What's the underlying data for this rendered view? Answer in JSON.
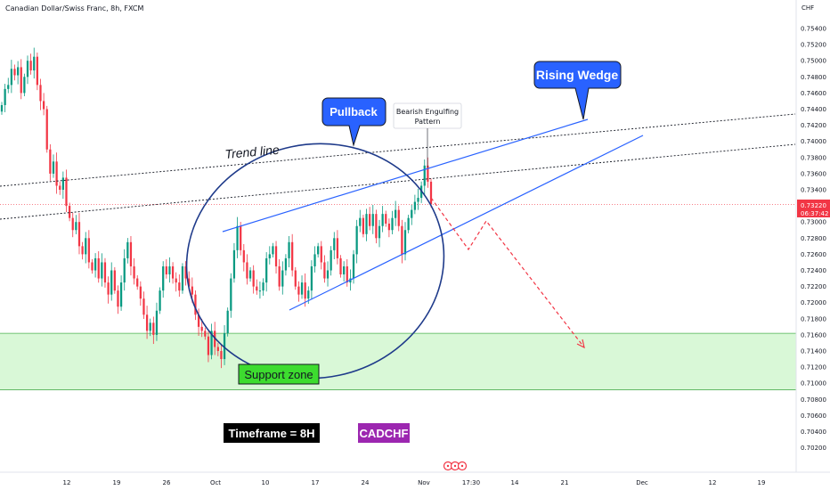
{
  "header": {
    "title": "Canadian Dollar/Swiss Franc, 8h, FXCM",
    "currency": "CHF"
  },
  "price_badge": {
    "price": "0.73220",
    "countdown": "06:37:42",
    "color": "#f23645"
  },
  "colors": {
    "up": "#089981",
    "down": "#f23645",
    "pattern_blue": "#2962ff",
    "support_fill": "#ccf5c9",
    "support_line": "#4caf50"
  },
  "annotations": {
    "pullback": "Pullback",
    "rising_wedge": "Rising Wedge",
    "trend_line": "Trend line",
    "bearish_engulfing_line1": "Bearish Engulfing",
    "bearish_engulfing_line2": "Pattern",
    "support_zone": "Support zone",
    "timeframe": "Timeframe = 8H",
    "symbol": "CADCHF"
  },
  "time_marker": "17:30",
  "chart_data": {
    "type": "candlestick",
    "title": "Canadian Dollar/Swiss Franc, 8h, FXCM",
    "y_axis_unit": "CHF",
    "ylim": [
      0.7015,
      0.756
    ],
    "y_ticks": [
      0.702,
      0.704,
      0.706,
      0.708,
      0.71,
      0.712,
      0.714,
      0.716,
      0.718,
      0.72,
      0.722,
      0.724,
      0.726,
      0.728,
      0.73,
      0.732,
      0.734,
      0.736,
      0.738,
      0.74,
      0.742,
      0.744,
      0.746,
      0.748,
      0.75,
      0.752,
      0.754
    ],
    "x_ticks": [
      "12",
      "19",
      "26",
      "Oct",
      "10",
      "17",
      "24",
      "Nov",
      "17:30",
      "14",
      "21",
      "Dec",
      "12",
      "19"
    ],
    "current_price": 0.7322,
    "support_zone": [
      0.7092,
      0.7162
    ],
    "close_series_approx": [
      0.7445,
      0.7465,
      0.747,
      0.749,
      0.7482,
      0.7492,
      0.746,
      0.748,
      0.75,
      0.7488,
      0.7505,
      0.747,
      0.745,
      0.744,
      0.739,
      0.736,
      0.7375,
      0.7345,
      0.734,
      0.7355,
      0.732,
      0.7305,
      0.729,
      0.73,
      0.727,
      0.726,
      0.728,
      0.725,
      0.724,
      0.7255,
      0.723,
      0.725,
      0.7225,
      0.721,
      0.724,
      0.7215,
      0.7195,
      0.7225,
      0.7255,
      0.7275,
      0.7245,
      0.723,
      0.722,
      0.7205,
      0.7185,
      0.7165,
      0.7175,
      0.716,
      0.719,
      0.7215,
      0.7245,
      0.7235,
      0.7245,
      0.723,
      0.7225,
      0.7215,
      0.7245,
      0.723,
      0.722,
      0.721,
      0.7185,
      0.717,
      0.7165,
      0.7158,
      0.7135,
      0.7165,
      0.7145,
      0.714,
      0.713,
      0.7162,
      0.719,
      0.723,
      0.7265,
      0.7295,
      0.7265,
      0.725,
      0.723,
      0.724,
      0.722,
      0.7215,
      0.7215,
      0.7225,
      0.7255,
      0.726,
      0.727,
      0.7245,
      0.722,
      0.724,
      0.7255,
      0.7275,
      0.724,
      0.722,
      0.721,
      0.7225,
      0.7205,
      0.7215,
      0.7245,
      0.726,
      0.727,
      0.725,
      0.723,
      0.724,
      0.7265,
      0.728,
      0.7255,
      0.7235,
      0.7245,
      0.7225,
      0.723,
      0.726,
      0.7295,
      0.7305,
      0.7285,
      0.731,
      0.7295,
      0.731,
      0.728,
      0.7295,
      0.731,
      0.7298,
      0.729,
      0.7305,
      0.7315,
      0.7295,
      0.726,
      0.729,
      0.7305,
      0.7315,
      0.7325,
      0.733,
      0.7345,
      0.737,
      0.735,
      0.7322
    ],
    "projection": [
      [
        0.7322
      ],
      [
        0.727
      ],
      [
        0.73
      ],
      [
        0.715
      ]
    ]
  }
}
